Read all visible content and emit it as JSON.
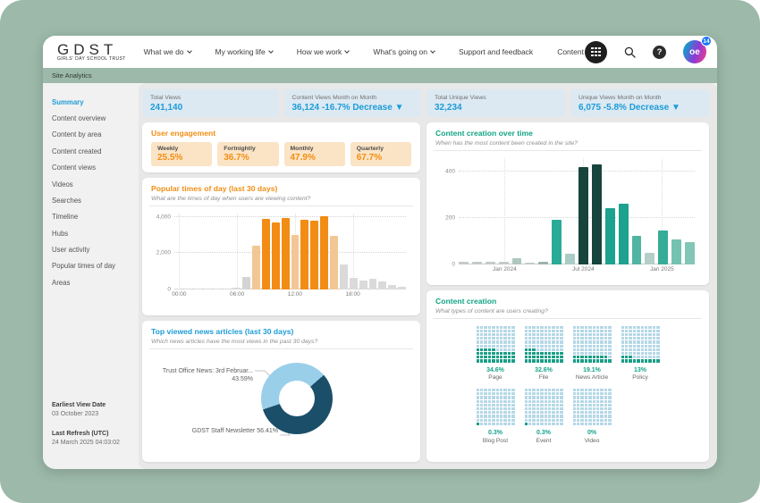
{
  "nav": {
    "logo": {
      "text": "GDST",
      "tagline": "GIRLS' DAY SCHOOL TRUST"
    },
    "items": [
      {
        "label": "What we do",
        "dropdown": true
      },
      {
        "label": "My working life",
        "dropdown": true
      },
      {
        "label": "How we work",
        "dropdown": true
      },
      {
        "label": "What's going on",
        "dropdown": true
      },
      {
        "label": "Support and feedback",
        "dropdown": false
      },
      {
        "label": "Content Co",
        "dropdown": false
      }
    ],
    "avatar": {
      "initials": "oe",
      "badge": "14"
    },
    "help_glyph": "?"
  },
  "subbar": {
    "label": "Site Analytics"
  },
  "sidebar": {
    "items": [
      {
        "label": "Summary",
        "active": true
      },
      {
        "label": "Content overview",
        "active": false
      },
      {
        "label": "Content by area",
        "active": false
      },
      {
        "label": "Content created",
        "active": false
      },
      {
        "label": "Content views",
        "active": false
      },
      {
        "label": "Videos",
        "active": false
      },
      {
        "label": "Searches",
        "active": false
      },
      {
        "label": "Timeline",
        "active": false
      },
      {
        "label": "Hubs",
        "active": false
      },
      {
        "label": "User activity",
        "active": false
      },
      {
        "label": "Popular times of day",
        "active": false
      },
      {
        "label": "Areas",
        "active": false
      }
    ],
    "footer": {
      "earliest_label": "Earliest View Date",
      "earliest_value": "03 October 2023",
      "refresh_label": "Last Refresh (UTC)",
      "refresh_value": "24 March 2025 04:03:02"
    }
  },
  "kpis": [
    {
      "label": "Total Views",
      "value": "241,140"
    },
    {
      "label": "Content Views Month on Month",
      "value": "36,124 -16.7% Decrease ▼"
    },
    {
      "label": "Total Unique Views",
      "value": "32,234"
    },
    {
      "label": "Unique Views Month on Month",
      "value": "6,075 -5.8% Decrease ▼"
    }
  ],
  "engagement": {
    "title": "User engagement",
    "tiles": [
      {
        "label": "Weekly",
        "value": "25.5%"
      },
      {
        "label": "Fortnightly",
        "value": "36.7%"
      },
      {
        "label": "Monthly",
        "value": "47.9%"
      },
      {
        "label": "Quarterly",
        "value": "67.7%"
      }
    ]
  },
  "chart_data": [
    {
      "id": "popular_times",
      "type": "bar",
      "title": "Popular times of day (last 30 days)",
      "subtitle": "What are the times of day when users are viewing content?",
      "categories": [
        "00:00",
        "01:00",
        "02:00",
        "03:00",
        "04:00",
        "05:00",
        "06:00",
        "07:00",
        "08:00",
        "09:00",
        "10:00",
        "11:00",
        "12:00",
        "13:00",
        "14:00",
        "15:00",
        "16:00",
        "17:00",
        "18:00",
        "19:00",
        "20:00",
        "21:00",
        "22:00",
        "23:00"
      ],
      "values": [
        50,
        30,
        30,
        30,
        30,
        40,
        80,
        650,
        2400,
        3900,
        3700,
        3950,
        2980,
        3830,
        3790,
        4050,
        2950,
        1350,
        600,
        480,
        550,
        400,
        200,
        100
      ],
      "colors": [
        "#DADADA",
        "#DADADA",
        "#DADADA",
        "#DADADA",
        "#DADADA",
        "#DADADA",
        "#DADADA",
        "#D4D4D4",
        "#F2C795",
        "#F28C14",
        "#F28C14",
        "#F28C14",
        "#F2C795",
        "#F28C14",
        "#F28C14",
        "#F28C14",
        "#F2C795",
        "#DADADA",
        "#DADADA",
        "#DADADA",
        "#DADADA",
        "#DADADA",
        "#DADADA",
        "#DADADA"
      ],
      "ymax": 4200,
      "y_ticks": [
        {
          "value": 0,
          "label": "0"
        },
        {
          "value": 2000,
          "label": "2,000"
        },
        {
          "value": 4000,
          "label": "4,000"
        }
      ],
      "x_ticks": [
        {
          "index": 0,
          "label": "00:00"
        },
        {
          "index": 6,
          "label": "06:00"
        },
        {
          "index": 12,
          "label": "12:00"
        },
        {
          "index": 18,
          "label": "18:00"
        }
      ],
      "grid": "dotted",
      "legend": "none"
    },
    {
      "id": "content_creation_over_time",
      "type": "bar",
      "title": "Content creation over time",
      "subtitle": "When has the most content been created in the site?",
      "categories": [
        "Oct 2023",
        "Nov 2023",
        "Dec 2023",
        "Jan 2024",
        "Feb 2024",
        "Mar 2024",
        "Apr 2024",
        "May 2024",
        "Jun 2024",
        "Jul 2024",
        "Aug 2024",
        "Sep 2024",
        "Oct 2024",
        "Nov 2024",
        "Dec 2024",
        "Jan 2025",
        "Feb 2025",
        "Mar 2025"
      ],
      "values": [
        8,
        8,
        8,
        10,
        25,
        5,
        10,
        190,
        45,
        420,
        430,
        240,
        260,
        120,
        50,
        145,
        105,
        95
      ],
      "colors": [
        "#C4CBC8",
        "#C4CBC8",
        "#C4CBC8",
        "#C4CBC8",
        "#AFC7C0",
        "#C4CBC8",
        "#9DB3AD",
        "#2BAB96",
        "#A9CCC4",
        "#17453D",
        "#17453D",
        "#1CA28E",
        "#1CA28E",
        "#4FB5A2",
        "#B3CFC8",
        "#35AC98",
        "#74C2B2",
        "#81C6B7"
      ],
      "ymax": 460,
      "y_ticks": [
        {
          "value": 0,
          "label": "0"
        },
        {
          "value": 200,
          "label": "200"
        },
        {
          "value": 400,
          "label": "400"
        }
      ],
      "x_ticks": [
        {
          "index": 3,
          "label": "Jan 2024"
        },
        {
          "index": 9,
          "label": "Jul 2024"
        },
        {
          "index": 15,
          "label": "Jan 2025"
        }
      ],
      "grid": "dotted",
      "legend": "none"
    },
    {
      "id": "top_news",
      "type": "pie",
      "title": "Top viewed news articles (last 30 days)",
      "subtitle": "Which news articles have the most views in the past 30 days?",
      "start_angle_deg": 252,
      "slices": [
        {
          "label": "Trust Office News: 3rd Februar...",
          "value": 43.59,
          "display": "43.59%",
          "color": "#9ACFEA"
        },
        {
          "label": "GDST Staff Newsletter",
          "value": 56.41,
          "display": "56.41%",
          "color": "#1B4F69"
        }
      ]
    },
    {
      "id": "content_creation_types",
      "type": "heatmap",
      "title": "Content creation",
      "subtitle": "What types of content are users creating?",
      "fill_color": "#1B9E87",
      "empty_color": "#B5D8E7",
      "items": [
        {
          "label": "Page",
          "pct": 34.6,
          "display": "34.6%"
        },
        {
          "label": "File",
          "pct": 32.6,
          "display": "32.6%"
        },
        {
          "label": "News Article",
          "pct": 19.1,
          "display": "19.1%"
        },
        {
          "label": "Policy",
          "pct": 13,
          "display": "13%"
        },
        {
          "label": "Blog Post",
          "pct": 0.3,
          "display": "0.3%"
        },
        {
          "label": "Event",
          "pct": 0.3,
          "display": "0.3%"
        },
        {
          "label": "Video",
          "pct": 0,
          "display": "0%"
        }
      ]
    }
  ],
  "colors": {
    "accent_blue": "#1C9CD9",
    "accent_orange": "#F28E14",
    "accent_teal": "#12A385",
    "sage": "#9CB9A9"
  }
}
